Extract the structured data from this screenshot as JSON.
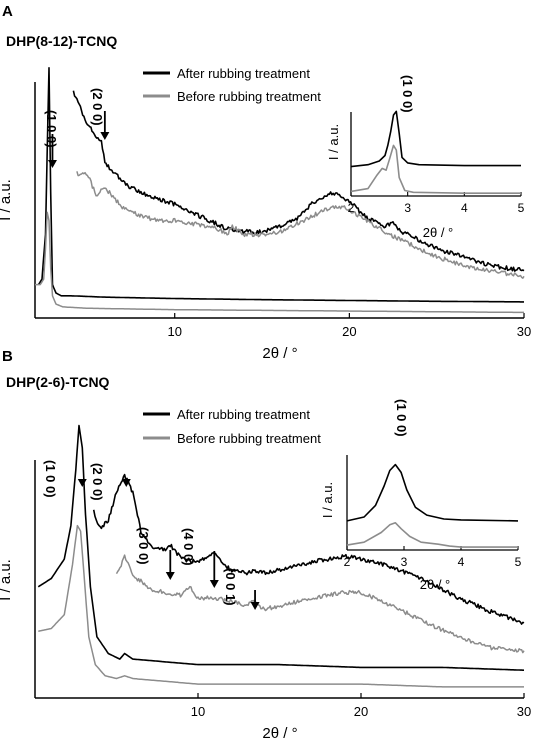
{
  "chart_data": [
    {
      "type": "line",
      "panel_letter": "A",
      "title": "DHP(8-12)-TCNQ",
      "xlabel": "2θ / °",
      "ylabel": "I / a.u.",
      "xlim": [
        2,
        30
      ],
      "xticks": [
        "10",
        "20",
        "30"
      ],
      "legend": "top-center",
      "series": [
        {
          "name": "After rubbing treatment",
          "color": "#000000",
          "segments": [
            {
              "x": [
                2.2,
                2.4,
                2.6,
                2.7,
                2.8,
                2.9,
                3.0,
                3.2,
                3.5,
                4,
                6,
                10,
                15,
                20,
                25,
                30
              ],
              "y": [
                0.12,
                0.14,
                0.3,
                0.6,
                0.9,
                0.45,
                0.12,
                0.09,
                0.08,
                0.08,
                0.075,
                0.07,
                0.066,
                0.063,
                0.06,
                0.058
              ]
            },
            {
              "x": [
                4.2,
                5,
                5.8,
                6,
                7,
                8,
                9,
                10,
                11,
                12,
                13,
                14,
                15,
                16,
                17,
                17.5,
                18,
                18.5,
                19,
                19.5,
                20,
                20.5,
                21,
                22,
                22.5,
                23,
                24,
                25,
                26,
                27,
                28,
                29,
                30
              ],
              "y": [
                0.81,
                0.7,
                0.63,
                0.56,
                0.49,
                0.45,
                0.43,
                0.41,
                0.38,
                0.35,
                0.32,
                0.31,
                0.31,
                0.33,
                0.36,
                0.39,
                0.42,
                0.43,
                0.45,
                0.44,
                0.42,
                0.39,
                0.36,
                0.33,
                0.34,
                0.31,
                0.28,
                0.25,
                0.23,
                0.21,
                0.19,
                0.18,
                0.17
              ]
            }
          ]
        },
        {
          "name": "Before rubbing treatment",
          "color": "#8c8c8c",
          "segments": [
            {
              "x": [
                2.0,
                2.3,
                2.5,
                2.6,
                2.7,
                2.8,
                2.9,
                3.0,
                3.2,
                3.6,
                5,
                10,
                20,
                30
              ],
              "y": [
                0.12,
                0.12,
                0.14,
                0.25,
                0.38,
                0.35,
                0.18,
                0.08,
                0.05,
                0.04,
                0.035,
                0.03,
                0.025,
                0.02
              ]
            },
            {
              "x": [
                4.4,
                5,
                5.5,
                6,
                7,
                8,
                9,
                10,
                11,
                12,
                12.5,
                13,
                13.3,
                14,
                15,
                16,
                17,
                18,
                19,
                19.5,
                20,
                21,
                22,
                23,
                24,
                25,
                26,
                27,
                28,
                29,
                30
              ],
              "y": [
                0.52,
                0.52,
                0.44,
                0.47,
                0.4,
                0.37,
                0.35,
                0.35,
                0.34,
                0.33,
                0.32,
                0.3,
                0.33,
                0.3,
                0.3,
                0.31,
                0.34,
                0.37,
                0.4,
                0.4,
                0.39,
                0.35,
                0.31,
                0.28,
                0.25,
                0.22,
                0.2,
                0.18,
                0.17,
                0.16,
                0.15
              ]
            }
          ]
        }
      ],
      "annotations": [
        {
          "label": "(1 0 0)",
          "x": 3.0
        },
        {
          "label": "(2 0 0)",
          "x": 6.0
        }
      ],
      "inset": {
        "title": "(1 0 0)",
        "xlabel": "2θ / °",
        "ylabel": "I / a.u.",
        "xlim": [
          2,
          5
        ],
        "xticks": [
          "2",
          "3",
          "4",
          "5"
        ],
        "series": [
          {
            "name": "After rubbing treatment",
            "color": "#000000",
            "x": [
              2.0,
              2.3,
              2.5,
              2.6,
              2.65,
              2.7,
              2.75,
              2.8,
              2.85,
              2.9,
              3.0,
              3.2,
              4,
              5
            ],
            "y": [
              0.32,
              0.34,
              0.38,
              0.44,
              0.55,
              0.7,
              0.88,
              0.92,
              0.68,
              0.42,
              0.36,
              0.34,
              0.33,
              0.33
            ]
          },
          {
            "name": "Before rubbing treatment",
            "color": "#8c8c8c",
            "x": [
              2.0,
              2.3,
              2.45,
              2.55,
              2.62,
              2.68,
              2.75,
              2.8,
              2.85,
              2.95,
              3.1,
              4,
              5
            ],
            "y": [
              0.05,
              0.08,
              0.22,
              0.3,
              0.28,
              0.4,
              0.55,
              0.5,
              0.2,
              0.06,
              0.04,
              0.03,
              0.03
            ]
          }
        ]
      }
    },
    {
      "type": "line",
      "panel_letter": "B",
      "title": "DHP(2-6)-TCNQ",
      "xlabel": "2θ / °",
      "ylabel": "I / a.u.",
      "xlim": [
        0,
        30
      ],
      "xticks": [
        "10",
        "20",
        "30"
      ],
      "legend": "top-center",
      "series": [
        {
          "name": "After rubbing treatment",
          "color": "#000000",
          "segments": [
            {
              "x": [
                0.2,
                1,
                1.8,
                2.2,
                2.5,
                2.7,
                2.9,
                3.1,
                3.4,
                3.8,
                4.5,
                5.2,
                5.5,
                6,
                8,
                10,
                15,
                20,
                25,
                30
              ],
              "y": [
                0.4,
                0.43,
                0.5,
                0.62,
                0.82,
                0.98,
                0.9,
                0.66,
                0.4,
                0.22,
                0.16,
                0.14,
                0.16,
                0.14,
                0.13,
                0.12,
                0.12,
                0.11,
                0.11,
                0.1
              ]
            },
            {
              "x": [
                3.6,
                4,
                4.5,
                5,
                5.5,
                6,
                6.5,
                7,
                8,
                8.3,
                9,
                10,
                11,
                11.5,
                12,
                13,
                13.5,
                14,
                15,
                17,
                19,
                20,
                22,
                24,
                26,
                28,
                30
              ],
              "y": [
                0.67,
                0.61,
                0.64,
                0.74,
                0.8,
                0.74,
                0.6,
                0.55,
                0.53,
                0.55,
                0.5,
                0.49,
                0.52,
                0.49,
                0.46,
                0.45,
                0.46,
                0.45,
                0.46,
                0.49,
                0.51,
                0.5,
                0.47,
                0.42,
                0.36,
                0.31,
                0.27
              ]
            }
          ]
        },
        {
          "name": "Before rubbing treatment",
          "color": "#8c8c8c",
          "segments": [
            {
              "x": [
                0.2,
                1,
                1.8,
                2.3,
                2.6,
                2.8,
                3.0,
                3.3,
                3.7,
                4.3,
                5,
                5.5,
                6,
                8,
                10,
                15,
                20,
                25,
                30
              ],
              "y": [
                0.24,
                0.25,
                0.3,
                0.48,
                0.62,
                0.6,
                0.45,
                0.22,
                0.12,
                0.08,
                0.07,
                0.08,
                0.07,
                0.06,
                0.05,
                0.05,
                0.05,
                0.04,
                0.04
              ]
            },
            {
              "x": [
                5.0,
                5.5,
                6,
                6.5,
                7,
                8,
                9,
                9.5,
                10,
                11,
                12,
                13,
                13.3,
                14,
                15,
                17,
                19,
                20,
                22,
                24,
                26,
                28,
                30
              ],
              "y": [
                0.44,
                0.51,
                0.44,
                0.42,
                0.39,
                0.38,
                0.37,
                0.4,
                0.36,
                0.36,
                0.35,
                0.33,
                0.35,
                0.32,
                0.33,
                0.36,
                0.38,
                0.38,
                0.33,
                0.27,
                0.22,
                0.18,
                0.17
              ]
            }
          ]
        }
      ],
      "annotations": [
        {
          "label": "(1 0 0)",
          "x": 2.9
        },
        {
          "label": "(2 0 0)",
          "x": 5.6
        },
        {
          "label": "(3 0 0)",
          "x": 8.3
        },
        {
          "label": "(4 0 0)",
          "x": 11.0
        },
        {
          "label": "(0 0 1)",
          "x": 13.5
        }
      ],
      "inset": {
        "title": "(1 0 0)",
        "xlabel": "2θ / °",
        "ylabel": "I / a.u.",
        "xlim": [
          2,
          5
        ],
        "xticks": [
          "2",
          "3",
          "4",
          "5"
        ],
        "series": [
          {
            "name": "After rubbing treatment",
            "color": "#000000",
            "x": [
              2.0,
              2.3,
              2.5,
              2.65,
              2.75,
              2.85,
              2.95,
              3.05,
              3.2,
              3.4,
              3.7,
              4,
              5
            ],
            "y": [
              0.3,
              0.34,
              0.46,
              0.66,
              0.82,
              0.88,
              0.8,
              0.62,
              0.44,
              0.36,
              0.32,
              0.31,
              0.3
            ]
          },
          {
            "name": "Before rubbing treatment",
            "color": "#8c8c8c",
            "x": [
              2.0,
              2.3,
              2.6,
              2.75,
              2.85,
              2.95,
              3.1,
              3.3,
              3.6,
              3.8,
              4,
              5
            ],
            "y": [
              0.05,
              0.08,
              0.18,
              0.26,
              0.28,
              0.22,
              0.14,
              0.08,
              0.06,
              0.04,
              0.03,
              0.03
            ]
          }
        ]
      }
    }
  ]
}
